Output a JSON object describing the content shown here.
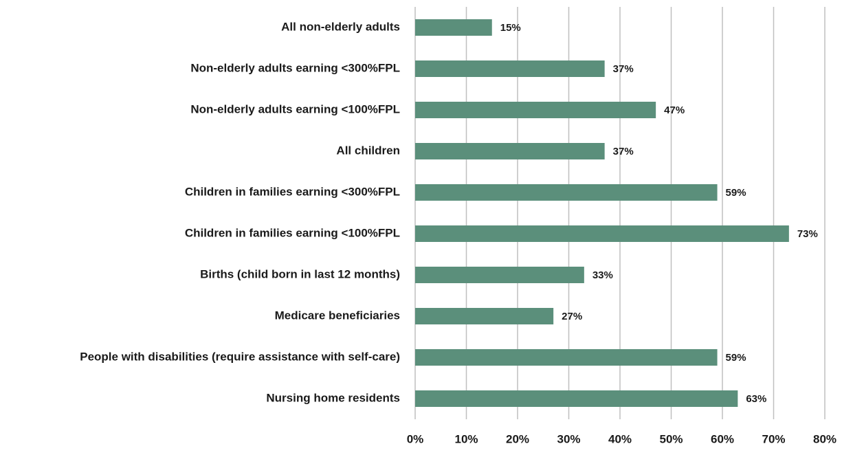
{
  "chart_data": {
    "type": "hbar",
    "categories": [
      "All non-elderly adults",
      "Non-elderly adults earning <300%FPL",
      "Non-elderly adults earning <100%FPL",
      "All children",
      "Children in families earning <300%FPL",
      "Children in families earning <100%FPL",
      "Births (child born in last 12 months)",
      "Medicare beneficiaries",
      "People with disabilities (require assistance with self-care)",
      "Nursing home residents"
    ],
    "values": [
      15,
      37,
      47,
      37,
      59,
      73,
      33,
      27,
      59,
      63
    ],
    "value_labels": [
      "15%",
      "37%",
      "47%",
      "37%",
      "59%",
      "73%",
      "33%",
      "27%",
      "59%",
      "63%"
    ],
    "color": "#5b8f7b",
    "xlim": [
      0,
      80
    ],
    "xticks": [
      {
        "value": 0,
        "label": "0%"
      },
      {
        "value": 10,
        "label": "10%"
      },
      {
        "value": 20,
        "label": "20%"
      },
      {
        "value": 30,
        "label": "30%"
      },
      {
        "value": 40,
        "label": "40%"
      },
      {
        "value": 50,
        "label": "50%"
      },
      {
        "value": 60,
        "label": "60%"
      },
      {
        "value": 70,
        "label": "70%"
      },
      {
        "value": 80,
        "label": "80%"
      }
    ],
    "grid": true
  }
}
